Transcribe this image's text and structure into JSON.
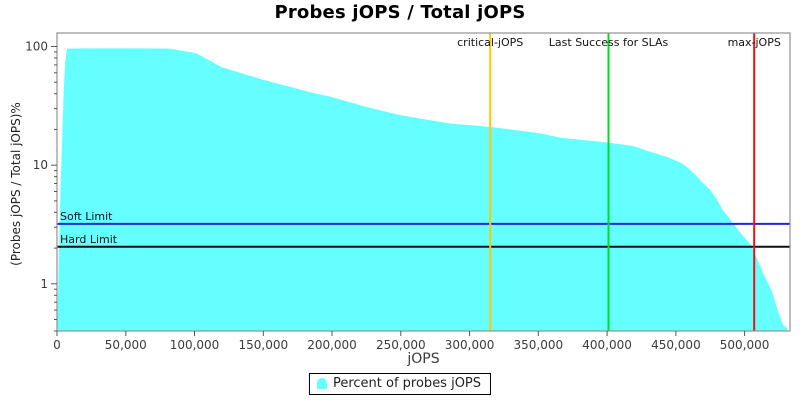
{
  "title": "Probes jOPS / Total jOPS",
  "legend": {
    "label": "Percent of probes jOPS"
  },
  "chart_data": {
    "type": "area",
    "title": "Probes jOPS / Total jOPS",
    "xlabel": "jOPS",
    "ylabel": "(Probes jOPS / Total jOPS)%",
    "x_axis": {
      "scale": "linear",
      "lim": [
        0,
        533000
      ],
      "ticks": [
        0,
        50000,
        100000,
        150000,
        200000,
        250000,
        300000,
        350000,
        400000,
        450000,
        500000
      ]
    },
    "y_axis": {
      "scale": "log",
      "lim": [
        0.4,
        130
      ],
      "ticks": [
        1,
        10,
        100
      ]
    },
    "grid": false,
    "legend_position": "bottom-center",
    "series": [
      {
        "name": "Percent of probes jOPS",
        "color": "#66FFFF",
        "points": [
          [
            200,
            0.42
          ],
          [
            1500,
            2
          ],
          [
            2500,
            6
          ],
          [
            3600,
            15
          ],
          [
            4800,
            40
          ],
          [
            6000,
            75
          ],
          [
            7300,
            96
          ],
          [
            20000,
            96.5
          ],
          [
            40000,
            96.5
          ],
          [
            60000,
            96.5
          ],
          [
            82000,
            96
          ],
          [
            101000,
            88
          ],
          [
            120000,
            67
          ],
          [
            133000,
            60
          ],
          [
            151000,
            52
          ],
          [
            185000,
            41
          ],
          [
            200000,
            37.5
          ],
          [
            225000,
            31
          ],
          [
            250000,
            26.3
          ],
          [
            285000,
            22.5
          ],
          [
            315000,
            21
          ],
          [
            351000,
            18.6
          ],
          [
            366000,
            17
          ],
          [
            401000,
            15.5
          ],
          [
            419000,
            14.5
          ],
          [
            431000,
            13
          ],
          [
            443000,
            11.8
          ],
          [
            455000,
            10.3
          ],
          [
            462000,
            8.8
          ],
          [
            469000,
            7.2
          ],
          [
            475000,
            6.2
          ],
          [
            480000,
            5.1
          ],
          [
            484000,
            4.2
          ],
          [
            491000,
            3.3
          ],
          [
            498000,
            2.6
          ],
          [
            505000,
            2.1
          ],
          [
            507000,
            1.86
          ],
          [
            513000,
            1.26
          ],
          [
            520000,
            0.86
          ],
          [
            524000,
            0.6
          ],
          [
            528000,
            0.45
          ],
          [
            531000,
            0.42
          ]
        ]
      }
    ],
    "vlines": [
      {
        "label": "critical-jOPS",
        "x": 315000,
        "color": "#FFC800"
      },
      {
        "label": "Last Success for SLAs",
        "x": 401000,
        "color": "#00DD22"
      },
      {
        "label": "max-jOPS",
        "x": 507000,
        "color": "#EE1111"
      }
    ],
    "hlines": [
      {
        "label": "Soft Limit",
        "y": 3.2,
        "color": "#2222DD"
      },
      {
        "label": "Hard Limit",
        "y": 2.05,
        "color": "#111111"
      }
    ],
    "colors": {
      "plot_border": "#919191",
      "tick": "#555555",
      "background": "#ffffff"
    }
  }
}
